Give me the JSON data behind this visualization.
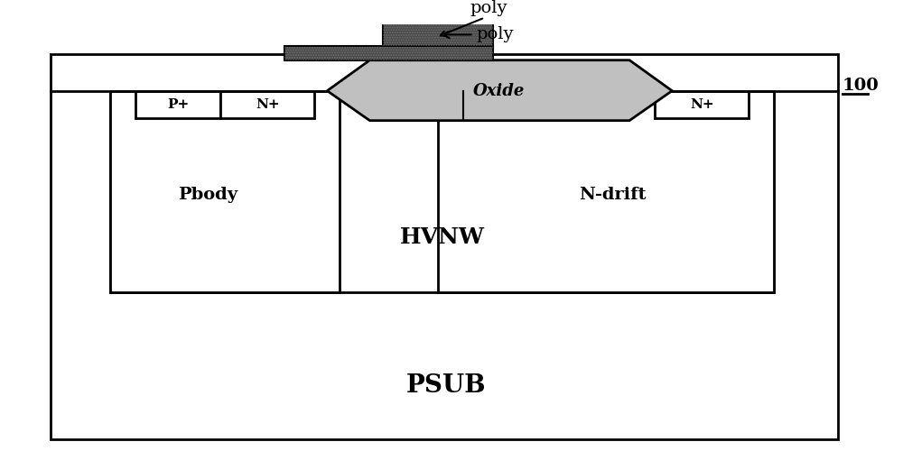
{
  "fig_width": 10.0,
  "fig_height": 5.0,
  "dpi": 100,
  "bg_color": "#ffffff",
  "label_100": "100",
  "psub_label": "PSUB",
  "hvnw_label": "HVNW",
  "pbody_label": "Pbody",
  "ndrift_label": "N-drift",
  "oxide_label": "Oxide",
  "poly_label": "poly",
  "pp_label": "P+",
  "np_label": "N+",
  "np2_label": "N+",
  "colors": {
    "white": "#ffffff",
    "black": "#000000",
    "dark_gray": "#3a3a3a",
    "medium_gray": "#888888",
    "light_gray": "#b0b0b0",
    "poly_dark": "#484848",
    "oxide_fill": "#b8b8b8",
    "oxide_light": "#c0c0c0"
  }
}
